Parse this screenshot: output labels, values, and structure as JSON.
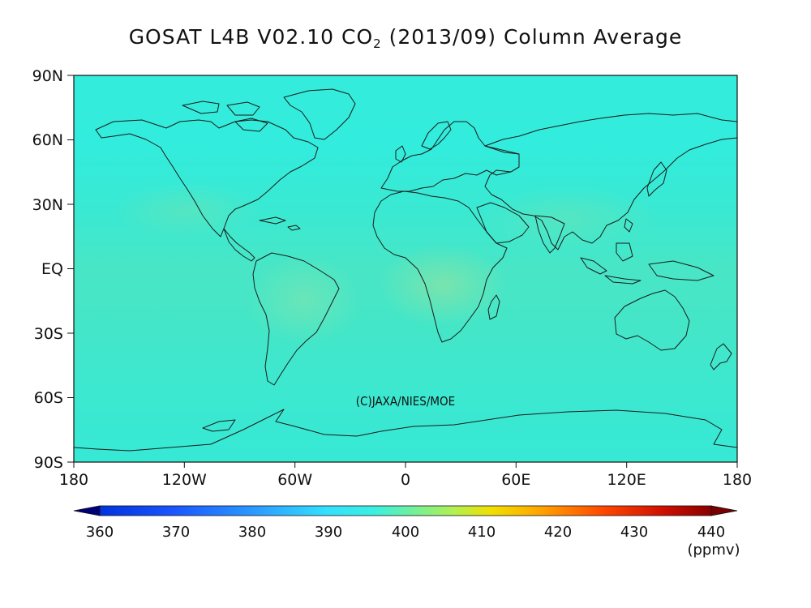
{
  "title": {
    "prefix": "GOSAT L4B V02.10 CO",
    "subscript": "2",
    "suffix": " (2013/09) Column Average"
  },
  "copyright": "(C)JAXA/NIES/MOE",
  "axes": {
    "lat_labels": [
      "90N",
      "60N",
      "30N",
      "EQ",
      "30S",
      "60S",
      "90S"
    ],
    "lon_labels": [
      "180",
      "120W",
      "60W",
      "0",
      "60E",
      "120E",
      "180"
    ]
  },
  "colorbar": {
    "min": 360,
    "max": 440,
    "labels": [
      "360",
      "370",
      "380",
      "390",
      "400",
      "410",
      "420",
      "430",
      "440"
    ],
    "unit": "(ppmv)",
    "colors": [
      "#0a0a8c",
      "#0033cc",
      "#1a66ff",
      "#33b3ff",
      "#33f0ff",
      "#7df0a0",
      "#c8f050",
      "#f0e000",
      "#ff9900",
      "#ff3300",
      "#b30000",
      "#7a0000"
    ]
  },
  "map": {
    "background_color": "#33e9d8",
    "regions": [
      {
        "name": "tropical-africa-high",
        "value": 400.5,
        "color": "#6ee5b4"
      },
      {
        "name": "south-america-high",
        "value": 399.8,
        "color": "#5ae6c0"
      },
      {
        "name": "northern-band-low",
        "value": 394.5,
        "color": "#33ecdd"
      }
    ]
  }
}
